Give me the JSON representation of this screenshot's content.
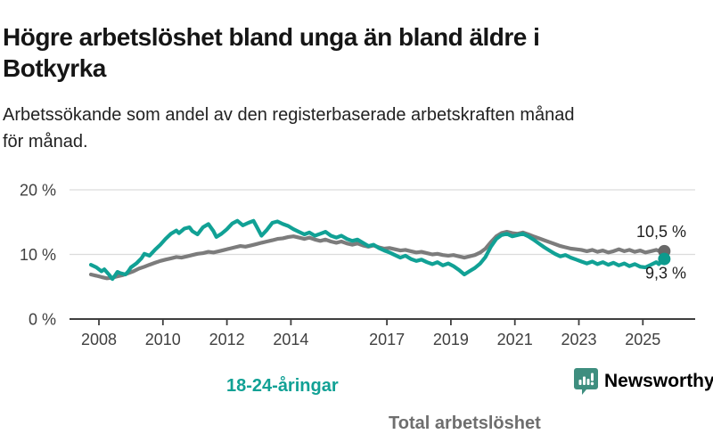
{
  "header": {
    "title_line1": "Högre arbetslöshet bland unga än bland äldre i",
    "title_line2": "Botkyrka",
    "subtitle_line1": "Arbetssökande som andel av den registerbaserade arbetskraften månad",
    "subtitle_line2": "för månad."
  },
  "footer": {
    "brand": "Newsworthy",
    "brand_color": "#3e8e7f",
    "logo_icon": "bar-chart-speech-bubble"
  },
  "chart_data": {
    "type": "line",
    "title": "Högre arbetslöshet bland unga än bland äldre i Botkyrka",
    "subtitle": "Arbetssökande som andel av den registerbaserade arbetskraften månad för månad.",
    "unit": "%",
    "grid": true,
    "legend_position": "inline-labels",
    "x_axis": {
      "range": [
        2007.7,
        2026.3
      ],
      "ticks": [
        {
          "year": 2008,
          "label": "2008"
        },
        {
          "year": 2010,
          "label": "2010"
        },
        {
          "year": 2012,
          "label": "2012"
        },
        {
          "year": 2014,
          "label": "2014"
        },
        {
          "year": 2017,
          "label": "2017"
        },
        {
          "year": 2019,
          "label": "2019"
        },
        {
          "year": 2021,
          "label": "2021"
        },
        {
          "year": 2023,
          "label": "2023"
        },
        {
          "year": 2025,
          "label": "2025"
        }
      ]
    },
    "y_axis": {
      "range": [
        0,
        21.5
      ],
      "ticks": [
        {
          "value": 20,
          "label": "20 %"
        },
        {
          "value": 10,
          "label": "10 %"
        },
        {
          "value": 0,
          "label": "0 %"
        }
      ]
    },
    "series": [
      {
        "name": "Total arbetslöshet",
        "color": "#7c7c7c",
        "dot_color": "#686868",
        "end_label": "10,5 %",
        "end_value": 10.5,
        "points": [
          [
            2007.75,
            6.9
          ],
          [
            2007.92,
            6.7
          ],
          [
            2008.08,
            6.5
          ],
          [
            2008.25,
            6.3
          ],
          [
            2008.42,
            6.4
          ],
          [
            2008.58,
            6.6
          ],
          [
            2008.75,
            6.8
          ],
          [
            2008.92,
            7.1
          ],
          [
            2009.08,
            7.4
          ],
          [
            2009.25,
            7.8
          ],
          [
            2009.42,
            8.1
          ],
          [
            2009.58,
            8.4
          ],
          [
            2009.75,
            8.7
          ],
          [
            2009.92,
            9.0
          ],
          [
            2010.08,
            9.2
          ],
          [
            2010.25,
            9.4
          ],
          [
            2010.42,
            9.6
          ],
          [
            2010.58,
            9.5
          ],
          [
            2010.75,
            9.7
          ],
          [
            2010.92,
            9.9
          ],
          [
            2011.08,
            10.1
          ],
          [
            2011.25,
            10.2
          ],
          [
            2011.42,
            10.4
          ],
          [
            2011.58,
            10.3
          ],
          [
            2011.75,
            10.5
          ],
          [
            2011.92,
            10.7
          ],
          [
            2012.08,
            10.9
          ],
          [
            2012.25,
            11.1
          ],
          [
            2012.42,
            11.3
          ],
          [
            2012.58,
            11.2
          ],
          [
            2012.75,
            11.4
          ],
          [
            2012.92,
            11.6
          ],
          [
            2013.08,
            11.8
          ],
          [
            2013.25,
            12.0
          ],
          [
            2013.42,
            12.2
          ],
          [
            2013.58,
            12.4
          ],
          [
            2013.75,
            12.5
          ],
          [
            2013.92,
            12.7
          ],
          [
            2014.08,
            12.8
          ],
          [
            2014.25,
            12.6
          ],
          [
            2014.42,
            12.4
          ],
          [
            2014.58,
            12.6
          ],
          [
            2014.75,
            12.3
          ],
          [
            2014.92,
            12.1
          ],
          [
            2015.08,
            12.3
          ],
          [
            2015.25,
            12.0
          ],
          [
            2015.42,
            11.8
          ],
          [
            2015.58,
            12.0
          ],
          [
            2015.75,
            11.7
          ],
          [
            2015.92,
            11.5
          ],
          [
            2016.08,
            11.7
          ],
          [
            2016.25,
            11.4
          ],
          [
            2016.42,
            11.2
          ],
          [
            2016.58,
            11.4
          ],
          [
            2016.75,
            11.1
          ],
          [
            2016.92,
            10.9
          ],
          [
            2017.08,
            11.0
          ],
          [
            2017.25,
            10.8
          ],
          [
            2017.42,
            10.6
          ],
          [
            2017.58,
            10.7
          ],
          [
            2017.75,
            10.5
          ],
          [
            2017.92,
            10.3
          ],
          [
            2018.08,
            10.4
          ],
          [
            2018.25,
            10.2
          ],
          [
            2018.42,
            10.0
          ],
          [
            2018.58,
            10.1
          ],
          [
            2018.75,
            9.9
          ],
          [
            2018.92,
            9.8
          ],
          [
            2019.08,
            9.9
          ],
          [
            2019.25,
            9.7
          ],
          [
            2019.42,
            9.5
          ],
          [
            2019.58,
            9.7
          ],
          [
            2019.75,
            9.9
          ],
          [
            2019.92,
            10.3
          ],
          [
            2020.08,
            10.9
          ],
          [
            2020.25,
            11.9
          ],
          [
            2020.42,
            12.8
          ],
          [
            2020.58,
            13.3
          ],
          [
            2020.75,
            13.5
          ],
          [
            2020.92,
            13.3
          ],
          [
            2021.08,
            13.2
          ],
          [
            2021.25,
            13.4
          ],
          [
            2021.42,
            13.1
          ],
          [
            2021.58,
            12.8
          ],
          [
            2021.75,
            12.5
          ],
          [
            2021.92,
            12.2
          ],
          [
            2022.08,
            11.9
          ],
          [
            2022.25,
            11.6
          ],
          [
            2022.42,
            11.3
          ],
          [
            2022.58,
            11.1
          ],
          [
            2022.75,
            10.9
          ],
          [
            2022.92,
            10.8
          ],
          [
            2023.08,
            10.7
          ],
          [
            2023.25,
            10.5
          ],
          [
            2023.42,
            10.7
          ],
          [
            2023.58,
            10.4
          ],
          [
            2023.75,
            10.6
          ],
          [
            2023.92,
            10.3
          ],
          [
            2024.08,
            10.5
          ],
          [
            2024.25,
            10.8
          ],
          [
            2024.42,
            10.5
          ],
          [
            2024.58,
            10.7
          ],
          [
            2024.75,
            10.4
          ],
          [
            2024.92,
            10.6
          ],
          [
            2025.08,
            10.3
          ],
          [
            2025.25,
            10.5
          ],
          [
            2025.42,
            10.7
          ],
          [
            2025.58,
            10.4
          ],
          [
            2025.67,
            10.5
          ]
        ]
      },
      {
        "name": "18-24-åringar",
        "color": "#11a195",
        "dot_color": "#0d9a8d",
        "end_label": "9,3 %",
        "end_value": 9.3,
        "points": [
          [
            2007.75,
            8.4
          ],
          [
            2007.92,
            8.0
          ],
          [
            2008.08,
            7.4
          ],
          [
            2008.17,
            7.7
          ],
          [
            2008.33,
            6.8
          ],
          [
            2008.42,
            6.2
          ],
          [
            2008.5,
            6.7
          ],
          [
            2008.58,
            7.3
          ],
          [
            2008.67,
            7.1
          ],
          [
            2008.83,
            6.9
          ],
          [
            2008.92,
            7.4
          ],
          [
            2009.0,
            8.0
          ],
          [
            2009.17,
            8.6
          ],
          [
            2009.33,
            9.4
          ],
          [
            2009.42,
            10.1
          ],
          [
            2009.58,
            9.8
          ],
          [
            2009.75,
            10.7
          ],
          [
            2009.92,
            11.5
          ],
          [
            2010.08,
            12.4
          ],
          [
            2010.25,
            13.2
          ],
          [
            2010.42,
            13.7
          ],
          [
            2010.5,
            13.3
          ],
          [
            2010.67,
            14.0
          ],
          [
            2010.83,
            14.2
          ],
          [
            2010.92,
            13.6
          ],
          [
            2011.08,
            13.1
          ],
          [
            2011.25,
            14.2
          ],
          [
            2011.42,
            14.7
          ],
          [
            2011.58,
            13.6
          ],
          [
            2011.67,
            12.7
          ],
          [
            2011.83,
            13.2
          ],
          [
            2012.0,
            13.9
          ],
          [
            2012.17,
            14.8
          ],
          [
            2012.33,
            15.2
          ],
          [
            2012.5,
            14.5
          ],
          [
            2012.67,
            14.9
          ],
          [
            2012.83,
            15.2
          ],
          [
            2012.92,
            14.4
          ],
          [
            2013.08,
            12.9
          ],
          [
            2013.25,
            13.8
          ],
          [
            2013.42,
            14.9
          ],
          [
            2013.58,
            15.1
          ],
          [
            2013.75,
            14.7
          ],
          [
            2013.92,
            14.4
          ],
          [
            2014.08,
            13.9
          ],
          [
            2014.25,
            13.5
          ],
          [
            2014.42,
            13.1
          ],
          [
            2014.58,
            13.4
          ],
          [
            2014.75,
            12.9
          ],
          [
            2014.92,
            13.2
          ],
          [
            2015.08,
            13.5
          ],
          [
            2015.25,
            12.9
          ],
          [
            2015.42,
            12.6
          ],
          [
            2015.58,
            12.9
          ],
          [
            2015.75,
            12.4
          ],
          [
            2015.92,
            12.1
          ],
          [
            2016.08,
            12.3
          ],
          [
            2016.25,
            11.8
          ],
          [
            2016.42,
            11.3
          ],
          [
            2016.58,
            11.5
          ],
          [
            2016.75,
            11.0
          ],
          [
            2016.92,
            10.6
          ],
          [
            2017.08,
            10.3
          ],
          [
            2017.25,
            9.9
          ],
          [
            2017.42,
            9.5
          ],
          [
            2017.58,
            9.8
          ],
          [
            2017.75,
            9.3
          ],
          [
            2017.92,
            9.0
          ],
          [
            2018.08,
            9.2
          ],
          [
            2018.25,
            8.8
          ],
          [
            2018.42,
            8.5
          ],
          [
            2018.58,
            8.8
          ],
          [
            2018.75,
            8.3
          ],
          [
            2018.92,
            8.6
          ],
          [
            2019.08,
            8.2
          ],
          [
            2019.25,
            7.6
          ],
          [
            2019.42,
            6.9
          ],
          [
            2019.58,
            7.4
          ],
          [
            2019.75,
            7.9
          ],
          [
            2019.92,
            8.6
          ],
          [
            2020.08,
            9.6
          ],
          [
            2020.25,
            11.2
          ],
          [
            2020.42,
            12.4
          ],
          [
            2020.58,
            13.0
          ],
          [
            2020.75,
            13.2
          ],
          [
            2020.92,
            12.8
          ],
          [
            2021.08,
            13.0
          ],
          [
            2021.25,
            13.2
          ],
          [
            2021.42,
            12.8
          ],
          [
            2021.58,
            12.3
          ],
          [
            2021.75,
            11.7
          ],
          [
            2021.92,
            11.1
          ],
          [
            2022.08,
            10.6
          ],
          [
            2022.25,
            10.1
          ],
          [
            2022.42,
            9.7
          ],
          [
            2022.58,
            9.9
          ],
          [
            2022.75,
            9.5
          ],
          [
            2022.92,
            9.2
          ],
          [
            2023.08,
            8.9
          ],
          [
            2023.25,
            8.6
          ],
          [
            2023.42,
            8.9
          ],
          [
            2023.58,
            8.5
          ],
          [
            2023.75,
            8.8
          ],
          [
            2023.92,
            8.4
          ],
          [
            2024.08,
            8.7
          ],
          [
            2024.25,
            8.3
          ],
          [
            2024.42,
            8.6
          ],
          [
            2024.58,
            8.2
          ],
          [
            2024.75,
            8.5
          ],
          [
            2024.92,
            8.1
          ],
          [
            2025.08,
            8.0
          ],
          [
            2025.25,
            8.4
          ],
          [
            2025.42,
            8.8
          ],
          [
            2025.5,
            8.5
          ],
          [
            2025.67,
            9.3
          ]
        ]
      }
    ]
  }
}
